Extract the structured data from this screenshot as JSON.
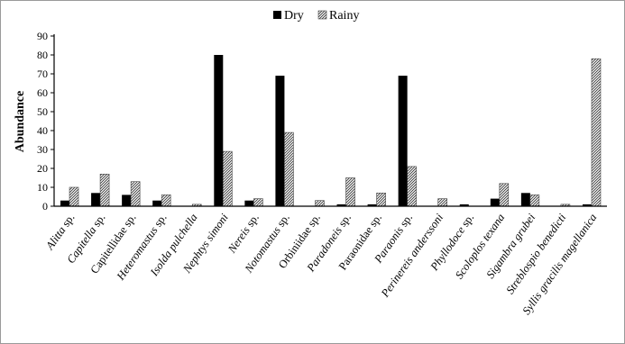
{
  "chart_data": {
    "type": "bar",
    "title": "",
    "xlabel": "",
    "ylabel": "Abundance",
    "ylim": [
      0,
      90
    ],
    "yticks": [
      0,
      10,
      20,
      30,
      40,
      50,
      60,
      70,
      80,
      90
    ],
    "grid": false,
    "legend_position": "top",
    "categories": [
      {
        "name": "Alitta",
        "suffix": " sp."
      },
      {
        "name": "Capitella",
        "suffix": " sp."
      },
      {
        "name": "",
        "suffix": "Capitellidae sp."
      },
      {
        "name": "Heteromastus",
        "suffix": " sp."
      },
      {
        "name": "Isolda pulchella",
        "suffix": ""
      },
      {
        "name": "Nephtys simoni",
        "suffix": ""
      },
      {
        "name": "Nereis",
        "suffix": " sp."
      },
      {
        "name": "Notomastus",
        "suffix": "  sp."
      },
      {
        "name": "",
        "suffix": "Orbiniidae  sp."
      },
      {
        "name": "Paradoneis",
        "suffix": " sp."
      },
      {
        "name": "",
        "suffix": "Paraonidae  sp."
      },
      {
        "name": "Paraonis",
        "suffix": " sp."
      },
      {
        "name": "Perinereis anderssoni",
        "suffix": ""
      },
      {
        "name": "Phyllodoce",
        "suffix": "  sp."
      },
      {
        "name": "Scoloplos texana",
        "suffix": ""
      },
      {
        "name": "Sigambra grubei",
        "suffix": ""
      },
      {
        "name": "Streblospio benedicti",
        "suffix": ""
      },
      {
        "name": "Syllis gracilis magellanica",
        "suffix": ""
      }
    ],
    "series": [
      {
        "name": "Dry",
        "fill": "#000000",
        "values": [
          3,
          7,
          6,
          3,
          0,
          80,
          3,
          69,
          0,
          1,
          1,
          69,
          0,
          1,
          4,
          7,
          0,
          1
        ]
      },
      {
        "name": "Rainy",
        "fill": "hatched",
        "values": [
          10,
          17,
          13,
          6,
          1,
          29,
          4,
          39,
          3,
          15,
          7,
          21,
          4,
          0,
          12,
          6,
          1,
          78
        ]
      }
    ]
  }
}
